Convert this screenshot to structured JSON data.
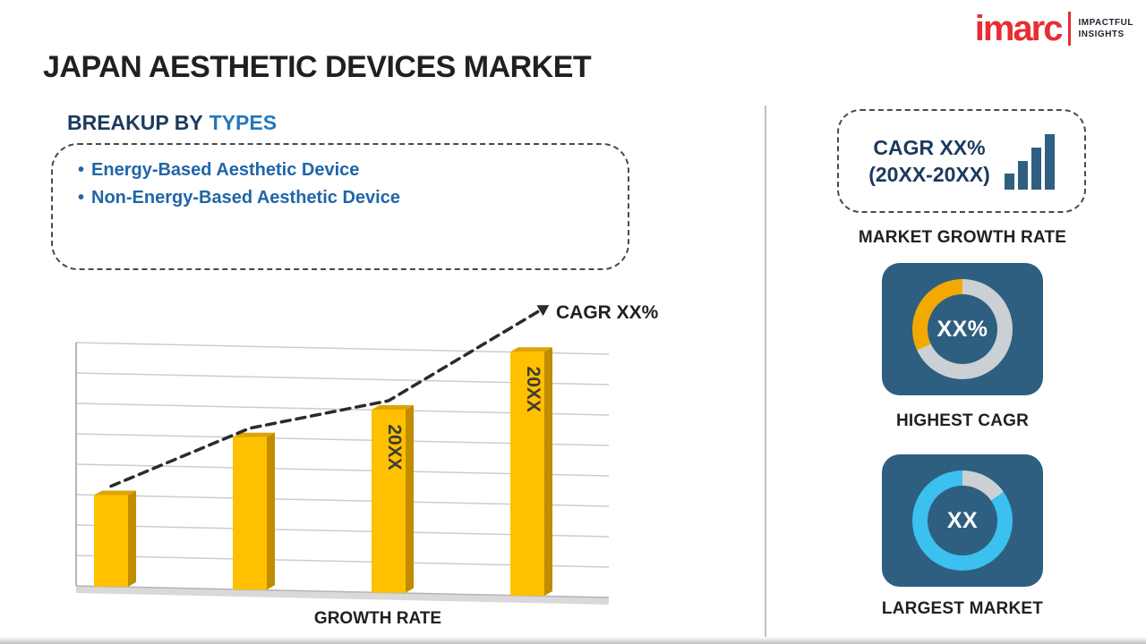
{
  "logo": {
    "brand": "imarc",
    "tagline_line1": "IMPACTFUL",
    "tagline_line2": "INSIGHTS"
  },
  "page_title": "JAPAN AESTHETIC DEVICES MARKET",
  "breakup": {
    "heading_prefix": "BREAKUP BY",
    "heading_highlight": "TYPES",
    "bullet": "•",
    "items": [
      "Energy-Based Aesthetic Device",
      "Non-Energy-Based Aesthetic Device"
    ]
  },
  "chart_data": {
    "type": "bar",
    "title": "",
    "xlabel": "GROWTH RATE",
    "ylabel": "",
    "categories": [
      "",
      "",
      "20XX",
      "20XX"
    ],
    "values": [
      33,
      55,
      66,
      88
    ],
    "ylim": [
      0,
      100
    ],
    "gridlines": 9,
    "grid": true,
    "legend": false,
    "bar_color": "#FFC000",
    "bar_side_color": "#C18C00",
    "bar_top_color": "#DFA400",
    "trend_label": "CAGR XX%",
    "trend_style": "dashed-arrow"
  },
  "right_panel": {
    "cagr_box": {
      "line1": "CAGR XX%",
      "line2": "(20XX-20XX)",
      "icon": "bar-chart-icon"
    },
    "market_growth_label": "MARKET GROWTH RATE",
    "highest_cagr": {
      "value": "XX%",
      "label": "HIGHEST CAGR",
      "accent_color": "#F2A900",
      "ring_color": "#CBD0D4",
      "arc_start_deg": 245
    },
    "largest_market": {
      "value": "XX",
      "label": "LARGEST MARKET",
      "accent_color": "#3BC0EF",
      "ring_color": "#CBD0D4",
      "arc_start_deg": 55
    }
  },
  "colors": {
    "card_bg": "#2E5F80",
    "brand_red": "#E62E33",
    "heading_navy": "#1B3A5E",
    "link_blue": "#2478BE",
    "bullet_blue": "#2065A8",
    "title_dark": "#231F20"
  }
}
